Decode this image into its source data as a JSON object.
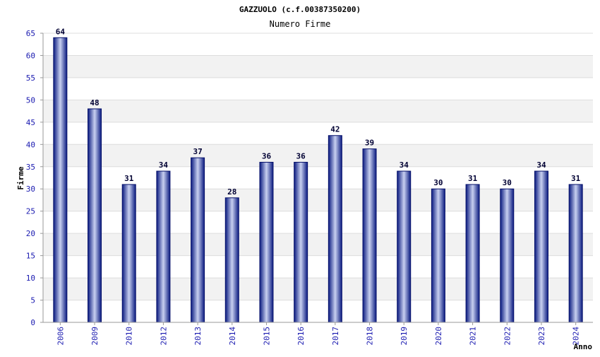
{
  "chart_data": {
    "type": "bar",
    "title": "GAZZUOLO (c.f.00387350200)",
    "subtitle": "Numero Firme",
    "ylabel": "Firme",
    "xlabel": "Anno",
    "categories": [
      "2006",
      "2009",
      "2010",
      "2012",
      "2013",
      "2014",
      "2015",
      "2016",
      "2017",
      "2018",
      "2019",
      "2020",
      "2021",
      "2022",
      "2023",
      "2024"
    ],
    "values": [
      64,
      48,
      31,
      34,
      37,
      28,
      36,
      36,
      42,
      39,
      34,
      30,
      31,
      30,
      34,
      31
    ],
    "ylim": [
      0,
      65
    ],
    "yticks": [
      0,
      5,
      10,
      15,
      20,
      25,
      30,
      35,
      40,
      45,
      50,
      55,
      60,
      65
    ],
    "grid": true,
    "legend": "none",
    "colors": {
      "bar_dark": "#0a1a80",
      "bar_light": "#c8d0f0",
      "band": "#f2f2f2",
      "grid": "#dddddd",
      "tick_text": "#1a1ab0"
    }
  }
}
